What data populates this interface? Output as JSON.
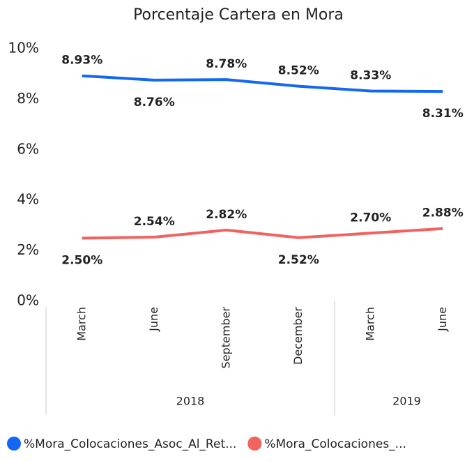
{
  "chart_data": {
    "type": "line",
    "title": "Porcentaje Cartera en Mora",
    "categories": [
      "March",
      "June",
      "September",
      "December",
      "March",
      "June"
    ],
    "year_groups": [
      {
        "label": "2018",
        "count": 4
      },
      {
        "label": "2019",
        "count": 2
      }
    ],
    "series": [
      {
        "name": "%Mora_Colocaciones_Asoc_Al_Ret...",
        "color": "#1467f5",
        "values": [
          8.93,
          8.76,
          8.78,
          8.52,
          8.33,
          8.31
        ],
        "value_labels": [
          "8.93%",
          "8.76%",
          "8.78%",
          "8.52%",
          "8.33%",
          "8.31%"
        ]
      },
      {
        "name": "%Mora_Colocaciones_...",
        "color": "#f2625e",
        "values": [
          2.5,
          2.54,
          2.82,
          2.52,
          2.7,
          2.88
        ],
        "value_labels": [
          "2.50%",
          "2.54%",
          "2.82%",
          "2.52%",
          "2.70%",
          "2.88%"
        ]
      }
    ],
    "ylim": [
      0,
      10
    ],
    "yticks": [
      {
        "value": 0,
        "label": "0%"
      },
      {
        "value": 2,
        "label": "2%"
      },
      {
        "value": 4,
        "label": "4%"
      },
      {
        "value": 6,
        "label": "6%"
      },
      {
        "value": 8,
        "label": "8%"
      },
      {
        "value": 10,
        "label": "10%"
      }
    ],
    "grid": false
  }
}
